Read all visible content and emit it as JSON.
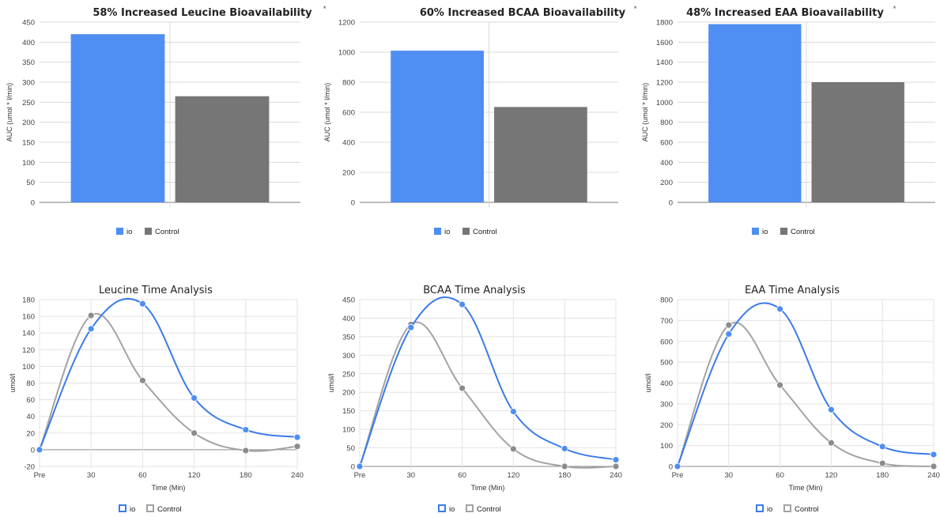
{
  "colors": {
    "io": "#4f8ef2",
    "control": "#767676",
    "io_line": "#3b7bea",
    "control_line": "#a3a3a3",
    "grid": "#d9d9d9"
  },
  "chart_data": [
    {
      "type": "bar",
      "title": "58% Increased Leucine Bioavailability",
      "title_mark": "*",
      "ylabel": "AUC (umol * l/min)",
      "ylim": [
        0,
        450
      ],
      "yticks": [
        0,
        50,
        100,
        150,
        200,
        250,
        300,
        350,
        400,
        450
      ],
      "series": [
        {
          "name": "io",
          "value": 420
        },
        {
          "name": "Control",
          "value": 265
        }
      ],
      "legend": "bottom"
    },
    {
      "type": "bar",
      "title": "60% Increased BCAA Bioavailability",
      "title_mark": "*",
      "ylabel": "AUC (umol * l/min)",
      "ylim": [
        0,
        1200
      ],
      "yticks": [
        0,
        200,
        400,
        600,
        800,
        1000,
        1200
      ],
      "series": [
        {
          "name": "io",
          "value": 1010
        },
        {
          "name": "Control",
          "value": 635
        }
      ],
      "legend": "bottom"
    },
    {
      "type": "bar",
      "title": "48% Increased EAA Bioavailability",
      "title_mark": "*",
      "ylabel": "AUC (umol * l/min)",
      "ylim": [
        0,
        1800
      ],
      "yticks": [
        0,
        200,
        400,
        600,
        800,
        1000,
        1200,
        1400,
        1600,
        1800
      ],
      "series": [
        {
          "name": "io",
          "value": 1780
        },
        {
          "name": "Control",
          "value": 1200
        }
      ],
      "legend": "bottom"
    },
    {
      "type": "line",
      "title": "Leucine Time Analysis",
      "xlabel": "Time (Min)",
      "ylabel": "umol/l",
      "categories": [
        "Pre",
        "30",
        "60",
        "120",
        "180",
        "240"
      ],
      "ylim": [
        -20,
        180
      ],
      "yticks": [
        -20,
        0,
        20,
        40,
        60,
        80,
        100,
        120,
        140,
        160,
        180
      ],
      "series": [
        {
          "name": "io",
          "values": [
            0,
            145,
            175,
            62,
            24,
            15
          ]
        },
        {
          "name": "Control",
          "values": [
            0,
            161,
            83,
            20,
            -1,
            4
          ]
        }
      ],
      "legend": "bottom"
    },
    {
      "type": "line",
      "title": "BCAA Time Analysis",
      "xlabel": "Time (Min)",
      "ylabel": "umol/l",
      "categories": [
        "Pre",
        "30",
        "60",
        "120",
        "180",
        "240"
      ],
      "ylim": [
        0,
        450
      ],
      "yticks": [
        0,
        50,
        100,
        150,
        200,
        250,
        300,
        350,
        400,
        450
      ],
      "series": [
        {
          "name": "io",
          "values": [
            0,
            375,
            437,
            148,
            48,
            18
          ]
        },
        {
          "name": "Control",
          "values": [
            0,
            383,
            211,
            47,
            0,
            0
          ]
        }
      ],
      "legend": "bottom"
    },
    {
      "type": "line",
      "title": "EAA Time Analysis",
      "xlabel": "Time (Min)",
      "ylabel": "umol/l",
      "categories": [
        "Pre",
        "30",
        "60",
        "120",
        "180",
        "240"
      ],
      "ylim": [
        0,
        800
      ],
      "yticks": [
        0,
        100,
        200,
        300,
        400,
        500,
        600,
        700,
        800
      ],
      "series": [
        {
          "name": "io",
          "values": [
            0,
            635,
            755,
            272,
            95,
            57
          ]
        },
        {
          "name": "Control",
          "values": [
            0,
            678,
            390,
            113,
            15,
            0
          ]
        }
      ],
      "legend": "bottom"
    }
  ]
}
